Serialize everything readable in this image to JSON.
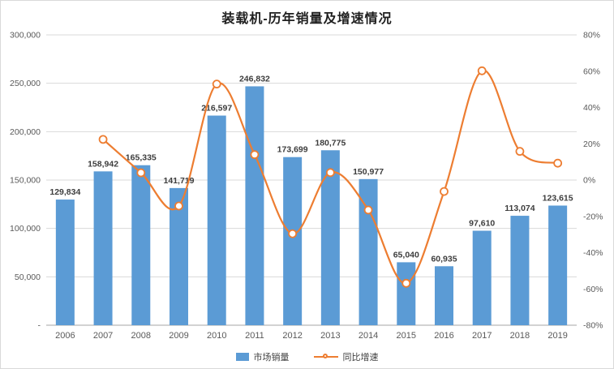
{
  "chart_data": {
    "type": "combo-bar-line",
    "title": "装载机-历年销量及增速情况",
    "categories": [
      "2006",
      "2007",
      "2008",
      "2009",
      "2010",
      "2011",
      "2012",
      "2013",
      "2014",
      "2015",
      "2016",
      "2017",
      "2018",
      "2019"
    ],
    "series": [
      {
        "name": "市场销量",
        "chart_type": "bar",
        "axis": "left",
        "color": "#5B9BD5",
        "values": [
          129834,
          158942,
          165335,
          141719,
          216597,
          246832,
          173699,
          180775,
          150977,
          65040,
          60935,
          97610,
          113074,
          123615
        ],
        "labels": [
          "129,834",
          "158,942",
          "165,335",
          "141,719",
          "216,597",
          "246,832",
          "173,699",
          "180,775",
          "150,977",
          "65,040",
          "60,935",
          "97,610",
          "113,074",
          "123,615"
        ]
      },
      {
        "name": "同比增速",
        "chart_type": "line",
        "axis": "right",
        "color": "#ED7D31",
        "values_percent": [
          null,
          22.4,
          4.0,
          -14.3,
          52.9,
          14.0,
          -29.6,
          4.1,
          -16.5,
          -56.9,
          -6.3,
          60.2,
          15.8,
          9.3
        ]
      }
    ],
    "left_axis": {
      "min": 0,
      "max": 300000,
      "step": 50000,
      "tick_labels_top_to_bottom": [
        "300,000",
        "250,000",
        "200,000",
        "150,000",
        "100,000",
        "50,000",
        "-"
      ]
    },
    "right_axis": {
      "min": -80,
      "max": 80,
      "step": 20,
      "tick_labels_top_to_bottom": [
        "80%",
        "60%",
        "40%",
        "20%",
        "0%",
        "-20%",
        "-40%",
        "-60%",
        "-80%"
      ]
    },
    "grid": true,
    "legend_position": "bottom"
  },
  "colors": {
    "bar": "#5B9BD5",
    "line": "#ED7D31",
    "grid": "#D9D9D9",
    "axis_line": "#A6A6A6",
    "axis_text": "#595959",
    "data_label_text": "#3D3D3D",
    "title_text": "#1F1F1F",
    "background": "#FFFFFF"
  }
}
